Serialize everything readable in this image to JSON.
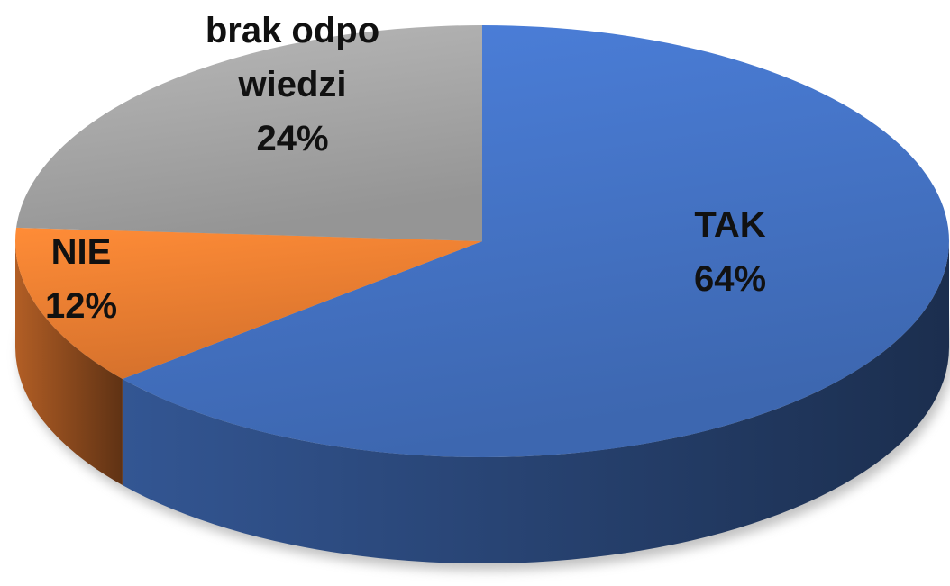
{
  "chart_data": {
    "type": "pie",
    "categories": [
      "TAK",
      "NIE",
      "brak odpowiedzi"
    ],
    "values": [
      64,
      12,
      24
    ],
    "value_labels": [
      "64%",
      "12%",
      "24%"
    ],
    "colors": [
      "#4472c4",
      "#ed7d31",
      "#a5a5a5"
    ]
  }
}
